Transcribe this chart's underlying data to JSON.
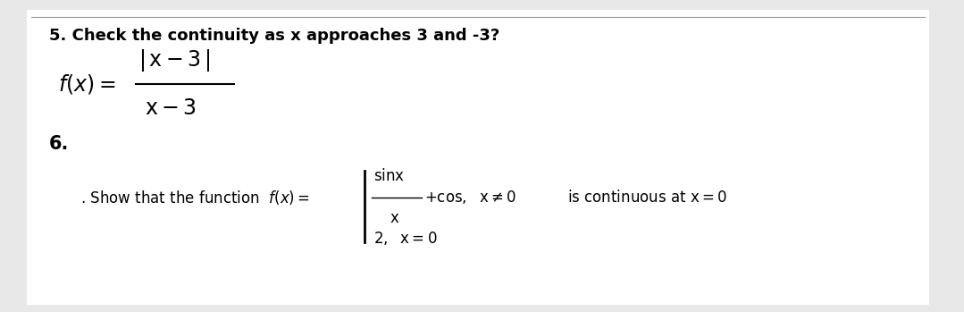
{
  "bg_color": "#e8e8e8",
  "panel_color": "#ffffff",
  "text_color": "#000000",
  "title_line": "5. Check the continuity as x approaches 3 and -3?",
  "q6_label": "6.",
  "font_size_title": 13,
  "font_size_body": 12,
  "font_size_formula": 14
}
